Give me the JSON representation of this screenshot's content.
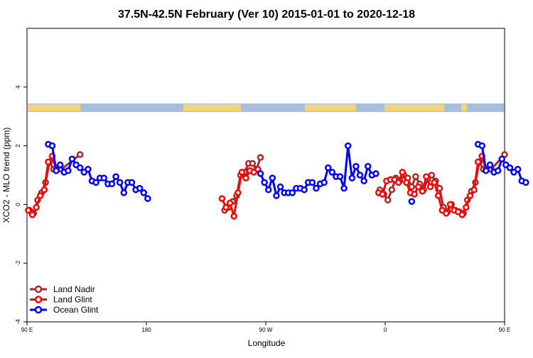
{
  "title": "37.5N-42.5N February (Ver 10)   2015-01-01 to 2020-12-18",
  "chart_data": {
    "type": "line",
    "title": "37.5N-42.5N February (Ver 10)   2015-01-01 to 2020-12-18",
    "xlabel": "Longitude",
    "ylabel": "XCO2 - MLO trend (ppm)",
    "xlim": [
      90,
      450
    ],
    "ylim": [
      -4,
      6
    ],
    "x_ticks": [
      {
        "value": 90,
        "label": "90 E"
      },
      {
        "value": 180,
        "label": "180"
      },
      {
        "value": 270,
        "label": "90 W"
      },
      {
        "value": 360,
        "label": "0"
      },
      {
        "value": 450,
        "label": "90 E"
      },
      {
        "value": 540,
        "label": "180"
      }
    ],
    "y_ticks": [
      -4,
      -2,
      0,
      2,
      4
    ],
    "legend_position": "bottom-left",
    "series": [
      {
        "name": "Land Nadir",
        "color": "#a52a2a",
        "points": [
          [
            92,
            -0.2
          ],
          [
            95,
            -0.3
          ],
          [
            98,
            0.15
          ],
          [
            101,
            0.4
          ],
          [
            104,
            0.75
          ],
          [
            107,
            1.45
          ],
          [
            110,
            1.2
          ],
          [
            113,
            1.25
          ],
          [
            116,
            1.2
          ],
          [
            130,
            1.7
          ],
          [
            239,
            -0.2
          ],
          [
            242,
            -0.1
          ],
          [
            245,
            0.1
          ],
          [
            248,
            0.3
          ],
          [
            251,
            1.0
          ],
          [
            254,
            1.1
          ],
          [
            257,
            1.4
          ],
          [
            260,
            1.4
          ],
          [
            263,
            1.2
          ],
          [
            266,
            1.6
          ],
          [
            356,
            0.5
          ],
          [
            359,
            0.35
          ],
          [
            362,
            0.15
          ],
          [
            365,
            0.5
          ],
          [
            368,
            0.9
          ],
          [
            371,
            0.8
          ],
          [
            374,
            1.0
          ],
          [
            377,
            0.9
          ],
          [
            380,
            0.6
          ],
          [
            383,
            0.95
          ],
          [
            386,
            0.7
          ],
          [
            389,
            0.5
          ],
          [
            392,
            0.85
          ],
          [
            395,
            1.0
          ],
          [
            398,
            0.8
          ],
          [
            401,
            0.55
          ],
          [
            404,
            -0.1
          ],
          [
            407,
            -0.25
          ],
          [
            410,
            0.0
          ],
          [
            413,
            -0.2
          ],
          [
            416,
            -0.25
          ],
          [
            419,
            -0.3
          ],
          [
            422,
            0.15
          ],
          [
            425,
            0.45
          ],
          [
            428,
            0.75
          ],
          [
            431,
            1.45
          ],
          [
            434,
            1.2
          ],
          [
            437,
            1.2
          ],
          [
            440,
            1.2
          ],
          [
            450,
            1.7
          ]
        ]
      },
      {
        "name": "Land Glint",
        "color": "#ff0000",
        "points": [
          [
            91,
            -0.2
          ],
          [
            94,
            -0.35
          ],
          [
            97,
            -0.1
          ],
          [
            100,
            0.3
          ],
          [
            103,
            0.5
          ],
          [
            106,
            1.45
          ],
          [
            109,
            1.65
          ],
          [
            112,
            1.2
          ],
          [
            237,
            0.2
          ],
          [
            240,
            -0.1
          ],
          [
            243,
            0.05
          ],
          [
            246,
            -0.4
          ],
          [
            249,
            0.4
          ],
          [
            252,
            1.1
          ],
          [
            255,
            0.9
          ],
          [
            258,
            1.15
          ],
          [
            261,
            1.1
          ],
          [
            264,
            1.2
          ],
          [
            355,
            0.4
          ],
          [
            358,
            0.35
          ],
          [
            361,
            0.8
          ],
          [
            364,
            0.85
          ],
          [
            367,
            0.85
          ],
          [
            370,
            0.75
          ],
          [
            373,
            1.1
          ],
          [
            376,
            0.75
          ],
          [
            379,
            0.4
          ],
          [
            382,
            0.35
          ],
          [
            385,
            0.6
          ],
          [
            388,
            0.45
          ],
          [
            391,
            0.95
          ],
          [
            394,
            0.6
          ],
          [
            397,
            0.75
          ],
          [
            400,
            0.3
          ],
          [
            403,
            -0.2
          ],
          [
            406,
            -0.3
          ],
          [
            409,
            0.0
          ],
          [
            412,
            -0.2
          ],
          [
            415,
            -0.25
          ],
          [
            418,
            -0.35
          ],
          [
            421,
            -0.1
          ],
          [
            424,
            0.3
          ],
          [
            427,
            0.5
          ],
          [
            430,
            1.45
          ],
          [
            433,
            1.65
          ],
          [
            436,
            1.2
          ]
        ]
      },
      {
        "name": "Ocean Glint",
        "color": "#0000ff",
        "points": [
          [
            106,
            2.05
          ],
          [
            109,
            2.0
          ],
          [
            112,
            1.15
          ],
          [
            115,
            1.35
          ],
          [
            118,
            1.1
          ],
          [
            121,
            1.15
          ],
          [
            124,
            1.55
          ],
          [
            127,
            1.35
          ],
          [
            130,
            1.25
          ],
          [
            133,
            1.1
          ],
          [
            136,
            1.2
          ],
          [
            139,
            0.8
          ],
          [
            142,
            0.75
          ],
          [
            145,
            0.9
          ],
          [
            148,
            0.9
          ],
          [
            151,
            0.7
          ],
          [
            154,
            0.7
          ],
          [
            157,
            0.95
          ],
          [
            160,
            0.75
          ],
          [
            163,
            0.4
          ],
          [
            166,
            0.75
          ],
          [
            169,
            0.75
          ],
          [
            172,
            0.5
          ],
          [
            175,
            0.55
          ],
          [
            178,
            0.4
          ],
          [
            181,
            0.2
          ],
          [
            266,
            1.05
          ],
          [
            269,
            0.75
          ],
          [
            272,
            0.5
          ],
          [
            275,
            0.9
          ],
          [
            278,
            0.3
          ],
          [
            281,
            0.6
          ],
          [
            284,
            0.4
          ],
          [
            287,
            0.4
          ],
          [
            290,
            0.4
          ],
          [
            293,
            0.55
          ],
          [
            296,
            0.55
          ],
          [
            299,
            0.5
          ],
          [
            302,
            0.75
          ],
          [
            305,
            0.75
          ],
          [
            308,
            0.55
          ],
          [
            311,
            0.7
          ],
          [
            314,
            0.75
          ],
          [
            317,
            1.25
          ],
          [
            320,
            1.1
          ],
          [
            323,
            0.95
          ],
          [
            326,
            0.95
          ],
          [
            329,
            0.55
          ],
          [
            332,
            2.0
          ],
          [
            335,
            0.9
          ],
          [
            338,
            1.3
          ],
          [
            341,
            1.0
          ],
          [
            344,
            0.8
          ],
          [
            347,
            1.3
          ],
          [
            350,
            1.0
          ],
          [
            353,
            1.05
          ],
          [
            380,
            0.1
          ],
          [
            430,
            2.05
          ],
          [
            433,
            2.0
          ],
          [
            436,
            1.15
          ],
          [
            439,
            1.35
          ],
          [
            442,
            1.1
          ],
          [
            445,
            1.15
          ],
          [
            448,
            1.55
          ],
          [
            451,
            1.35
          ],
          [
            454,
            1.25
          ],
          [
            457,
            1.1
          ],
          [
            460,
            1.2
          ],
          [
            463,
            0.8
          ],
          [
            466,
            0.75
          ]
        ]
      }
    ]
  }
}
